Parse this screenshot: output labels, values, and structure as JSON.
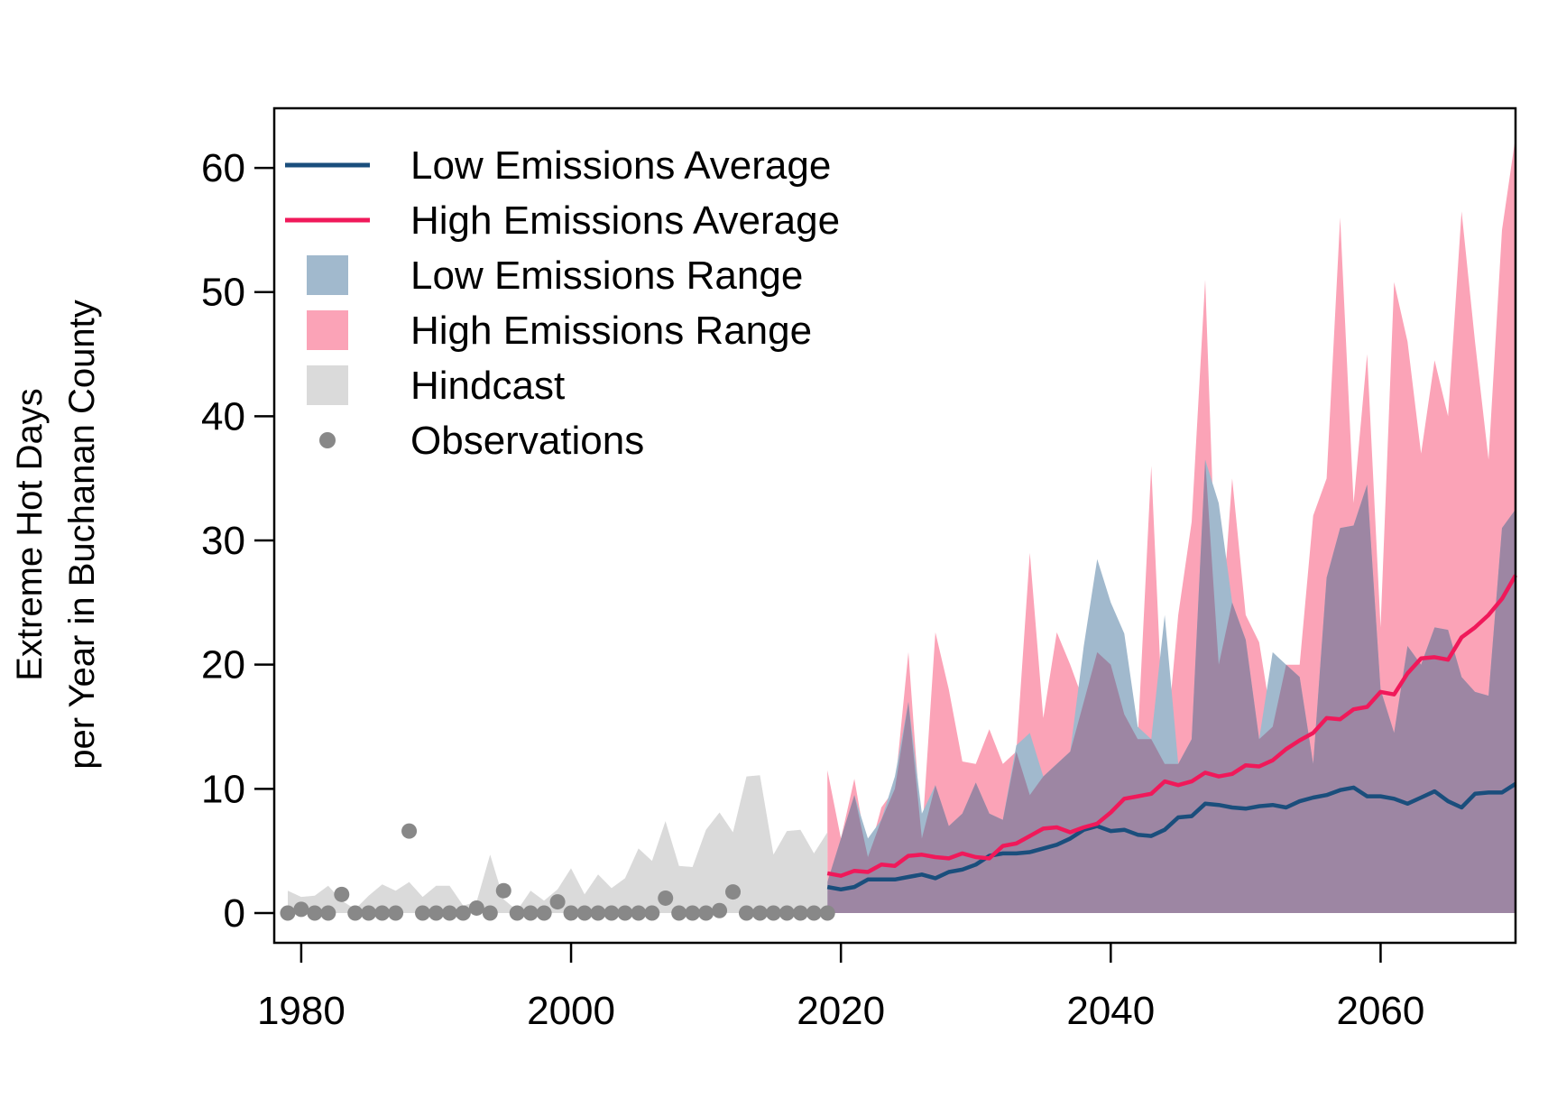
{
  "chart_data": {
    "type": "area",
    "title": "",
    "xlabel": "",
    "ylabel_lines": [
      "Extreme Hot Days",
      "per Year in Buchanan County"
    ],
    "xlim": [
      1978,
      2070
    ],
    "ylim": [
      -2.4,
      64.8
    ],
    "x_ticks": [
      1980,
      2000,
      2020,
      2040,
      2060
    ],
    "y_ticks": [
      0,
      10,
      20,
      30,
      40,
      50,
      60
    ],
    "grid": false,
    "legend_position": "top-left",
    "legend": [
      {
        "label": "Low Emissions Average",
        "kind": "line",
        "color": "#1a4e7c"
      },
      {
        "label": "High Emissions Average",
        "kind": "line",
        "color": "#f0195a"
      },
      {
        "label": "Low Emissions Range",
        "kind": "box",
        "color": "#a1b9cd"
      },
      {
        "label": "High Emissions Range",
        "kind": "box",
        "color": "#fba3b7"
      },
      {
        "label": "Hindcast",
        "kind": "box",
        "color": "#dadada"
      },
      {
        "label": "Observations",
        "kind": "point",
        "color": "#888888"
      }
    ],
    "colors": {
      "low_avg": "#1a4e7c",
      "high_avg": "#f0195a",
      "low_range": "#a1b9cd",
      "high_range": "#fba3b7",
      "overlap": "#9d86a3",
      "hindcast": "#dadada",
      "observations": "#888888"
    },
    "hindcast": {
      "x": [
        1979,
        1980,
        1981,
        1982,
        1983,
        1984,
        1985,
        1986,
        1987,
        1988,
        1989,
        1990,
        1991,
        1992,
        1993,
        1994,
        1995,
        1996,
        1997,
        1998,
        1999,
        2000,
        2001,
        2002,
        2003,
        2004,
        2005,
        2006,
        2007,
        2008,
        2009,
        2010,
        2011,
        2012,
        2013,
        2014,
        2015,
        2016,
        2017,
        2018,
        2019
      ],
      "upper": [
        1.8,
        1.3,
        1.4,
        2.2,
        1.0,
        0.3,
        1.4,
        2.3,
        1.8,
        2.5,
        1.3,
        2.2,
        2.2,
        0.6,
        0.9,
        4.7,
        1.1,
        0.2,
        1.8,
        1.0,
        1.9,
        3.6,
        1.5,
        3.1,
        2.0,
        2.8,
        5.2,
        4.2,
        7.4,
        3.8,
        3.7,
        6.7,
        8.1,
        6.5,
        11.0,
        11.1,
        4.7,
        6.6,
        6.7,
        4.8,
        6.5
      ],
      "lower": [
        0,
        0,
        0,
        0,
        0,
        0,
        0,
        0,
        0,
        0,
        0,
        0,
        0,
        0,
        0,
        0,
        0,
        0,
        0,
        0,
        0,
        0,
        0,
        0,
        0,
        0,
        0,
        0,
        0,
        0,
        0,
        0,
        0,
        0,
        0,
        0,
        0,
        0,
        0,
        0,
        0
      ]
    },
    "observations": {
      "x": [
        1979,
        1980,
        1981,
        1982,
        1983,
        1984,
        1985,
        1986,
        1987,
        1988,
        1989,
        1990,
        1991,
        1992,
        1993,
        1994,
        1995,
        1996,
        1997,
        1998,
        1999,
        2000,
        2001,
        2002,
        2003,
        2004,
        2005,
        2006,
        2007,
        2008,
        2009,
        2010,
        2011,
        2012,
        2013,
        2014,
        2015,
        2016,
        2017,
        2018,
        2019
      ],
      "y": [
        0,
        0.3,
        0,
        0,
        1.5,
        0,
        0,
        0,
        0,
        6.6,
        0,
        0,
        0,
        0,
        0.4,
        0,
        1.8,
        0,
        0,
        0,
        0.9,
        0,
        0,
        0,
        0,
        0,
        0,
        0,
        1.2,
        0,
        0,
        0,
        0.2,
        1.7,
        0,
        0,
        0,
        0,
        0,
        0,
        0
      ]
    },
    "projection_x": [
      2019,
      2020,
      2021,
      2022,
      2023,
      2024,
      2025,
      2026,
      2027,
      2028,
      2029,
      2030,
      2031,
      2032,
      2033,
      2034,
      2035,
      2036,
      2037,
      2038,
      2039,
      2040,
      2041,
      2042,
      2043,
      2044,
      2045,
      2046,
      2047,
      2048,
      2049,
      2050,
      2051,
      2052,
      2053,
      2054,
      2055,
      2056,
      2057,
      2058,
      2059,
      2060,
      2061,
      2062,
      2063,
      2064,
      2065,
      2066,
      2067,
      2068,
      2069,
      2070
    ],
    "series": [
      {
        "name": "Low Emissions Range",
        "role": "low_range",
        "upper": [
          2.5,
          6.0,
          9.5,
          6.0,
          7.5,
          11.0,
          17.0,
          8.0,
          10.3,
          7.0,
          8.0,
          10.5,
          8.0,
          7.5,
          13.5,
          14.5,
          11.0,
          12.0,
          13.0,
          21.5,
          28.5,
          25.0,
          22.5,
          15.0,
          14.0,
          24.0,
          12.0,
          14.0,
          36.5,
          33.0,
          25.0,
          22.0,
          14.0,
          21.0,
          20.0,
          19.0,
          12.0,
          27.0,
          31.0,
          31.2,
          34.5,
          18.0,
          14.5,
          21.5,
          20.0,
          23.0,
          22.8,
          19.0,
          17.8,
          17.5,
          31.0,
          32.5
        ],
        "lower": [
          0,
          0,
          0,
          0,
          0,
          0,
          0,
          0,
          0,
          0,
          0,
          0,
          0,
          0,
          0,
          0,
          0,
          0,
          0,
          0,
          0,
          0,
          0,
          0,
          0,
          0,
          0,
          0,
          0,
          0,
          0,
          0,
          0,
          0,
          0,
          0,
          0,
          0,
          0,
          0,
          0,
          0,
          0,
          0,
          0,
          0,
          0,
          0,
          0,
          0,
          0,
          0
        ]
      },
      {
        "name": "High Emissions Range",
        "role": "high_range",
        "upper": [
          11.5,
          6.0,
          10.8,
          4.5,
          8.5,
          10.0,
          21.0,
          6.0,
          22.6,
          18.0,
          12.2,
          12.0,
          14.8,
          12.0,
          13.0,
          29.0,
          15.7,
          22.6,
          20.0,
          17.0,
          21.0,
          20.0,
          16.0,
          14.0,
          36.0,
          12.0,
          24.0,
          31.5,
          51.0,
          20.0,
          35.0,
          24.0,
          21.8,
          15.0,
          20.0,
          20.0,
          32.0,
          35.0,
          56.0,
          33.0,
          45.0,
          23.0,
          50.8,
          46.0,
          37.0,
          44.5,
          40.0,
          56.5,
          46.0,
          36.5,
          55.0,
          62.5
        ],
        "lower": [
          0,
          0,
          0,
          0,
          0,
          0,
          0,
          0,
          0,
          0,
          0,
          0,
          0,
          0,
          0,
          0,
          0,
          0,
          0,
          0,
          0,
          0,
          0,
          0,
          0,
          0,
          0,
          0,
          0,
          0,
          0,
          0,
          0,
          0,
          0,
          0,
          0,
          0,
          0,
          0,
          0,
          0,
          0,
          0,
          0,
          0,
          0,
          0,
          0,
          0,
          0,
          0
        ]
      },
      {
        "name": "Overlap",
        "role": "overlap",
        "upper": [
          2.5,
          6.0,
          9.5,
          4.5,
          7.5,
          10.0,
          17.0,
          6.0,
          10.3,
          7.0,
          8.0,
          10.5,
          8.0,
          7.5,
          13.0,
          9.5,
          11.0,
          12.0,
          13.0,
          17.0,
          21.0,
          20.0,
          16.0,
          14.0,
          14.0,
          12.0,
          12.0,
          14.0,
          36.5,
          20.0,
          25.0,
          22.0,
          14.0,
          15.0,
          20.0,
          19.0,
          12.0,
          27.0,
          31.0,
          31.2,
          34.5,
          18.0,
          14.5,
          21.5,
          20.0,
          23.0,
          22.8,
          19.0,
          17.8,
          17.5,
          31.0,
          32.5
        ],
        "lower": [
          0,
          0,
          0,
          0,
          0,
          0,
          0,
          0,
          0,
          0,
          0,
          0,
          0,
          0,
          0,
          0,
          0,
          0,
          0,
          0,
          0,
          0,
          0,
          0,
          0,
          0,
          0,
          0,
          0,
          0,
          0,
          0,
          0,
          0,
          0,
          0,
          0,
          0,
          0,
          0,
          0,
          0,
          0,
          0,
          0,
          0,
          0,
          0,
          0,
          0,
          0,
          0
        ]
      },
      {
        "name": "Low Emissions Average",
        "role": "low_avg",
        "values": [
          2.1,
          1.9,
          2.1,
          2.7,
          2.7,
          2.7,
          2.9,
          3.1,
          2.8,
          3.3,
          3.5,
          3.9,
          4.6,
          4.8,
          4.8,
          4.9,
          5.2,
          5.5,
          6.0,
          6.7,
          7.0,
          6.6,
          6.7,
          6.3,
          6.2,
          6.7,
          7.7,
          7.8,
          8.8,
          8.7,
          8.5,
          8.4,
          8.6,
          8.7,
          8.5,
          9.0,
          9.3,
          9.5,
          9.9,
          10.1,
          9.4,
          9.4,
          9.2,
          8.8,
          9.3,
          9.8,
          9.0,
          8.5,
          9.6,
          9.7,
          9.7,
          10.4
        ]
      },
      {
        "name": "High Emissions Average",
        "role": "high_avg",
        "values": [
          3.2,
          3.0,
          3.4,
          3.3,
          3.9,
          3.8,
          4.6,
          4.7,
          4.5,
          4.4,
          4.8,
          4.5,
          4.4,
          5.4,
          5.6,
          6.2,
          6.8,
          6.9,
          6.5,
          6.9,
          7.2,
          8.1,
          9.2,
          9.4,
          9.6,
          10.6,
          10.3,
          10.6,
          11.3,
          11.0,
          11.2,
          11.9,
          11.8,
          12.3,
          13.2,
          13.9,
          14.5,
          15.7,
          15.6,
          16.4,
          16.6,
          17.8,
          17.6,
          19.3,
          20.5,
          20.6,
          20.4,
          22.2,
          23.0,
          24.0,
          25.3,
          27.2
        ]
      }
    ]
  }
}
